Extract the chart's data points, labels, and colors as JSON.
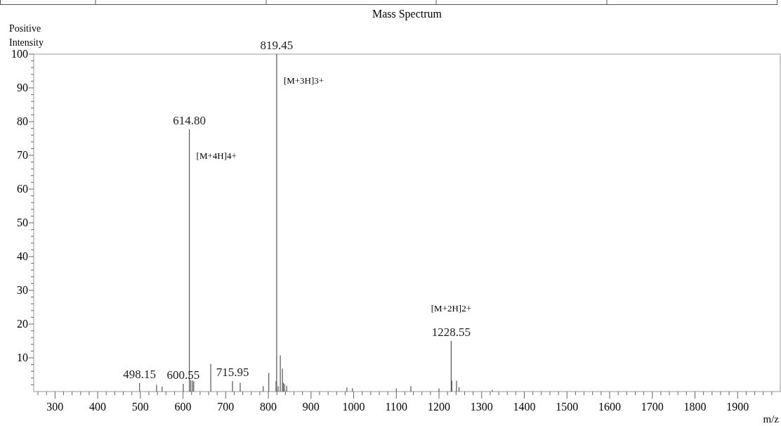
{
  "chart_data": {
    "type": "bar",
    "title": "Mass Spectrum",
    "xlabel": "m/z",
    "ylabel": "Positive Intensity",
    "x": [
      498.15,
      538,
      551,
      600.55,
      614.8,
      618,
      622,
      625,
      665,
      715.95,
      734,
      788,
      801,
      818,
      819.45,
      823,
      828,
      833,
      835,
      838,
      843,
      984,
      997,
      1100,
      1134,
      1200,
      1228.55,
      1230,
      1241,
      1247,
      1325
    ],
    "values": [
      2.5,
      2.0,
      1.5,
      2.3,
      77.7,
      3.4,
      3.3,
      3.0,
      8.2,
      3.1,
      2.6,
      1.6,
      5.5,
      3.1,
      100,
      1.6,
      10.7,
      6.8,
      2.6,
      2.2,
      1.7,
      1.2,
      1.0,
      0.9,
      1.6,
      0.9,
      15.0,
      3.2,
      3.2,
      1.3,
      0.5
    ],
    "color": "#555555",
    "annotations": [
      {
        "text": "498.15",
        "x": 498.15,
        "y": 2.5
      },
      {
        "text": "600.55",
        "x": 600.55,
        "y": 2.3
      },
      {
        "text": "614.80",
        "x": 614.8,
        "y": 77.7
      },
      {
        "text": "[M+4H]4+",
        "x": 614.8,
        "y": 77.7
      },
      {
        "text": "715.95",
        "x": 715.95,
        "y": 3.1
      },
      {
        "text": "819.45",
        "x": 819.45,
        "y": 100
      },
      {
        "text": "[M+3H]3+",
        "x": 819.45,
        "y": 100
      },
      {
        "text": "1228.55",
        "x": 1228.55,
        "y": 15.0
      },
      {
        "text": "[M+2H]2+",
        "x": 1228.55,
        "y": 15.0
      }
    ],
    "xlim": [
      250,
      2000
    ],
    "ylim": [
      0,
      100
    ],
    "xticks": [
      {
        "value": 260,
        "label": null
      },
      {
        "value": 280,
        "label": null
      },
      300,
      {
        "value": 320,
        "label": null
      },
      {
        "value": 340,
        "label": null
      },
      {
        "value": 360,
        "label": null
      },
      {
        "value": 380,
        "label": null
      },
      400,
      {
        "value": 420,
        "label": null
      },
      {
        "value": 440,
        "label": null
      },
      {
        "value": 460,
        "label": null
      },
      {
        "value": 480,
        "label": null
      },
      500,
      {
        "value": 520,
        "label": null
      },
      {
        "value": 540,
        "label": null
      },
      {
        "value": 560,
        "label": null
      },
      {
        "value": 580,
        "label": null
      },
      600,
      {
        "value": 620,
        "label": null
      },
      {
        "value": 640,
        "label": null
      },
      {
        "value": 660,
        "label": null
      },
      {
        "value": 680,
        "label": null
      },
      700,
      {
        "value": 720,
        "label": null
      },
      {
        "value": 740,
        "label": null
      },
      {
        "value": 760,
        "label": null
      },
      {
        "value": 780,
        "label": null
      },
      800,
      {
        "value": 820,
        "label": null
      },
      {
        "value": 840,
        "label": null
      },
      {
        "value": 860,
        "label": null
      },
      {
        "value": 880,
        "label": null
      },
      900,
      {
        "value": 920,
        "label": null
      },
      {
        "value": 940,
        "label": null
      },
      {
        "value": 960,
        "label": null
      },
      {
        "value": 980,
        "label": null
      },
      1000,
      {
        "value": 1020,
        "label": null
      },
      {
        "value": 1040,
        "label": null
      },
      {
        "value": 1060,
        "label": null
      },
      {
        "value": 1080,
        "label": null
      },
      1100,
      {
        "value": 1120,
        "label": null
      },
      {
        "value": 1140,
        "label": null
      },
      {
        "value": 1160,
        "label": null
      },
      {
        "value": 1180,
        "label": null
      },
      1200,
      {
        "value": 1220,
        "label": null
      },
      {
        "value": 1240,
        "label": null
      },
      {
        "value": 1260,
        "label": null
      },
      {
        "value": 1280,
        "label": null
      },
      1300,
      {
        "value": 1320,
        "label": null
      },
      {
        "value": 1340,
        "label": null
      },
      {
        "value": 1360,
        "label": null
      },
      {
        "value": 1380,
        "label": null
      },
      1400,
      {
        "value": 1420,
        "label": null
      },
      {
        "value": 1440,
        "label": null
      },
      {
        "value": 1460,
        "label": null
      },
      {
        "value": 1480,
        "label": null
      },
      1500,
      {
        "value": 1520,
        "label": null
      },
      {
        "value": 1540,
        "label": null
      },
      {
        "value": 1560,
        "label": null
      },
      {
        "value": 1580,
        "label": null
      },
      1600,
      {
        "value": 1620,
        "label": null
      },
      {
        "value": 1640,
        "label": null
      },
      {
        "value": 1660,
        "label": null
      },
      {
        "value": 1680,
        "label": null
      },
      1700,
      {
        "value": 1720,
        "label": null
      },
      {
        "value": 1740,
        "label": null
      },
      {
        "value": 1760,
        "label": null
      },
      {
        "value": 1780,
        "label": null
      },
      1800,
      {
        "value": 1820,
        "label": null
      },
      {
        "value": 1840,
        "label": null
      },
      {
        "value": 1860,
        "label": null
      },
      {
        "value": 1880,
        "label": null
      },
      1900,
      {
        "value": 1920,
        "label": null
      },
      {
        "value": 1940,
        "label": null
      },
      {
        "value": 1960,
        "label": null
      },
      {
        "value": 1980,
        "label": null
      }
    ],
    "yticks": [
      {
        "value": 2,
        "label": null
      },
      {
        "value": 4,
        "label": null
      },
      {
        "value": 6,
        "label": null
      },
      {
        "value": 8,
        "label": null
      },
      10,
      {
        "value": 12,
        "label": null
      },
      {
        "value": 14,
        "label": null
      },
      {
        "value": 16,
        "label": null
      },
      {
        "value": 18,
        "label": null
      },
      20,
      {
        "value": 22,
        "label": null
      },
      {
        "value": 24,
        "label": null
      },
      {
        "value": 26,
        "label": null
      },
      {
        "value": 28,
        "label": null
      },
      30,
      {
        "value": 32,
        "label": null
      },
      {
        "value": 34,
        "label": null
      },
      {
        "value": 36,
        "label": null
      },
      {
        "value": 38,
        "label": null
      },
      40,
      {
        "value": 42,
        "label": null
      },
      {
        "value": 44,
        "label": null
      },
      {
        "value": 46,
        "label": null
      },
      {
        "value": 48,
        "label": null
      },
      50,
      {
        "value": 52,
        "label": null
      },
      {
        "value": 54,
        "label": null
      },
      {
        "value": 56,
        "label": null
      },
      {
        "value": 58,
        "label": null
      },
      60,
      {
        "value": 62,
        "label": null
      },
      {
        "value": 64,
        "label": null
      },
      {
        "value": 66,
        "label": null
      },
      {
        "value": 68,
        "label": null
      },
      70,
      {
        "value": 72,
        "label": null
      },
      {
        "value": 74,
        "label": null
      },
      {
        "value": 76,
        "label": null
      },
      {
        "value": 78,
        "label": null
      },
      80,
      {
        "value": 82,
        "label": null
      },
      {
        "value": 84,
        "label": null
      },
      {
        "value": 86,
        "label": null
      },
      {
        "value": 88,
        "label": null
      },
      90,
      {
        "value": 92,
        "label": null
      },
      {
        "value": 94,
        "label": null
      },
      {
        "value": 96,
        "label": null
      },
      {
        "value": 98,
        "label": null
      },
      100
    ]
  }
}
